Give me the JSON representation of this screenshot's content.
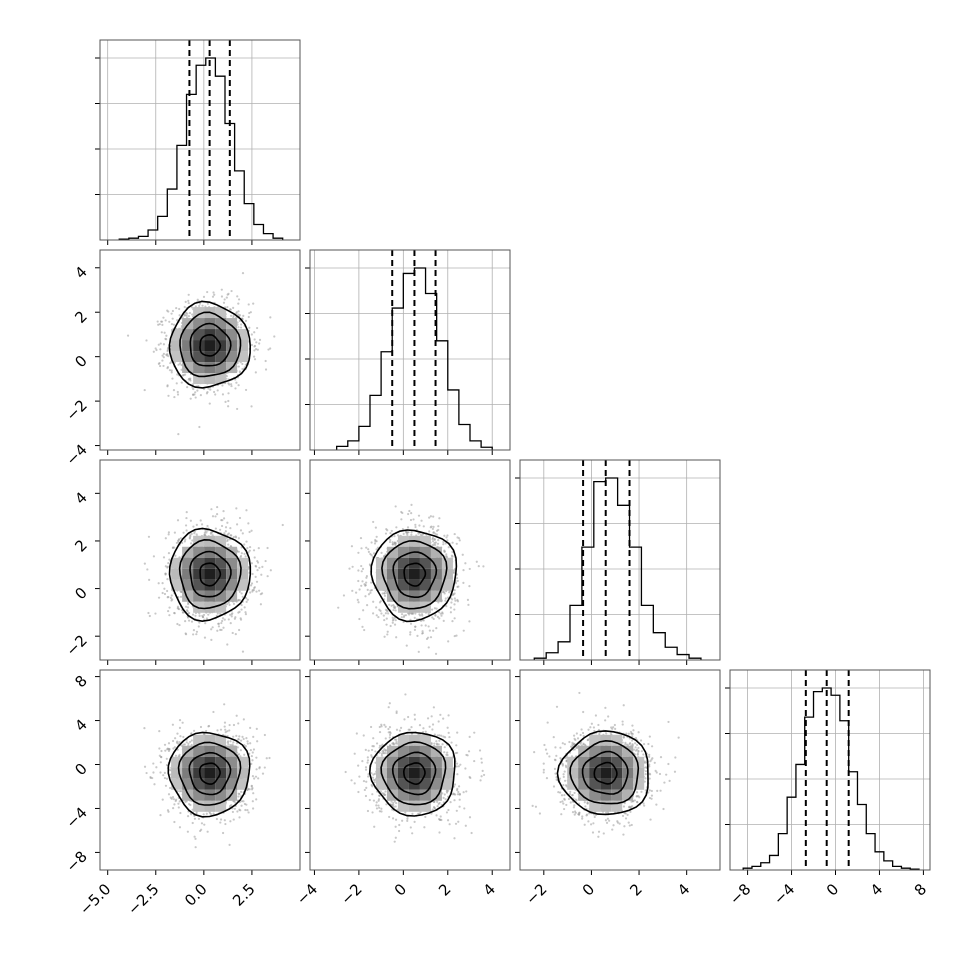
{
  "chart_data": {
    "type": "corner",
    "n_params": 4,
    "colors": {
      "hist": "#000000",
      "points": "#9a9a9a",
      "contour": "#000000",
      "grid": "#b0b0b0",
      "frame": "#555555"
    },
    "params": [
      {
        "range": [
          -5.4,
          5.0
        ],
        "ticks": [
          -5.0,
          -2.5,
          0.0,
          2.5
        ],
        "tick_labels": [
          "−5.0",
          "−2.5",
          "0.0",
          "2.5"
        ],
        "mean": 0.3,
        "sigma": 1.05,
        "quantiles": [
          -0.75,
          0.3,
          1.35
        ],
        "hist_edges": [
          -4.4,
          -3.9,
          -3.4,
          -2.9,
          -2.4,
          -1.9,
          -1.4,
          -0.9,
          -0.4,
          0.1,
          0.6,
          1.1,
          1.6,
          2.1,
          2.6,
          3.1,
          3.6,
          4.1
        ],
        "hist_counts": [
          0.005,
          0.01,
          0.02,
          0.055,
          0.13,
          0.28,
          0.52,
          0.8,
          0.96,
          1.0,
          0.9,
          0.64,
          0.38,
          0.2,
          0.085,
          0.035,
          0.01
        ]
      },
      {
        "range": [
          -4.2,
          4.8
        ],
        "ticks": [
          -4,
          -2,
          0,
          2,
          4
        ],
        "tick_labels": [
          "−4",
          "−2",
          "0",
          "2",
          "4"
        ],
        "mean": 0.5,
        "sigma": 0.95,
        "quantiles": [
          -0.5,
          0.5,
          1.45
        ],
        "hist_edges": [
          -3.0,
          -2.5,
          -2.0,
          -1.5,
          -1.0,
          -0.5,
          0.0,
          0.5,
          1.0,
          1.5,
          2.0,
          2.5,
          3.0,
          3.5,
          4.0
        ],
        "hist_counts": [
          0.02,
          0.05,
          0.13,
          0.3,
          0.54,
          0.78,
          0.97,
          1.0,
          0.86,
          0.6,
          0.33,
          0.14,
          0.05,
          0.015
        ]
      },
      {
        "range": [
          -3.0,
          5.4
        ],
        "ticks": [
          -2,
          0,
          2,
          4
        ],
        "tick_labels": [
          "−2",
          "0",
          "2",
          "4"
        ],
        "mean": 0.6,
        "sigma": 0.95,
        "quantiles": [
          -0.35,
          0.6,
          1.6
        ],
        "hist_edges": [
          -2.4,
          -1.9,
          -1.4,
          -0.9,
          -0.4,
          0.1,
          0.6,
          1.1,
          1.6,
          2.1,
          2.6,
          3.1,
          3.6,
          4.1,
          4.6
        ],
        "hist_counts": [
          0.01,
          0.04,
          0.1,
          0.3,
          0.62,
          0.98,
          1.0,
          0.85,
          0.62,
          0.3,
          0.15,
          0.07,
          0.03,
          0.01
        ]
      },
      {
        "range": [
          -9.6,
          8.6
        ],
        "ticks": [
          -8,
          -4,
          0,
          4,
          8
        ],
        "tick_labels": [
          "−8",
          "−4",
          "0",
          "4",
          "8"
        ],
        "mean": -0.8,
        "sigma": 1.9,
        "quantiles": [
          -2.7,
          -0.8,
          1.2
        ],
        "hist_edges": [
          -8.4,
          -7.6,
          -6.8,
          -6.0,
          -5.2,
          -4.4,
          -3.6,
          -2.8,
          -2.0,
          -1.2,
          -0.4,
          0.4,
          1.2,
          2.0,
          2.8,
          3.6,
          4.4,
          5.2,
          6.0,
          6.8,
          7.6
        ],
        "hist_counts": [
          0.01,
          0.02,
          0.04,
          0.08,
          0.2,
          0.4,
          0.58,
          0.84,
          0.98,
          1.0,
          0.96,
          0.82,
          0.54,
          0.36,
          0.2,
          0.1,
          0.05,
          0.02,
          0.01,
          0.005
        ]
      }
    ],
    "contour_levels_sigma": [
      0.5,
      1.0,
      1.5,
      2.0
    ],
    "grid": true
  }
}
